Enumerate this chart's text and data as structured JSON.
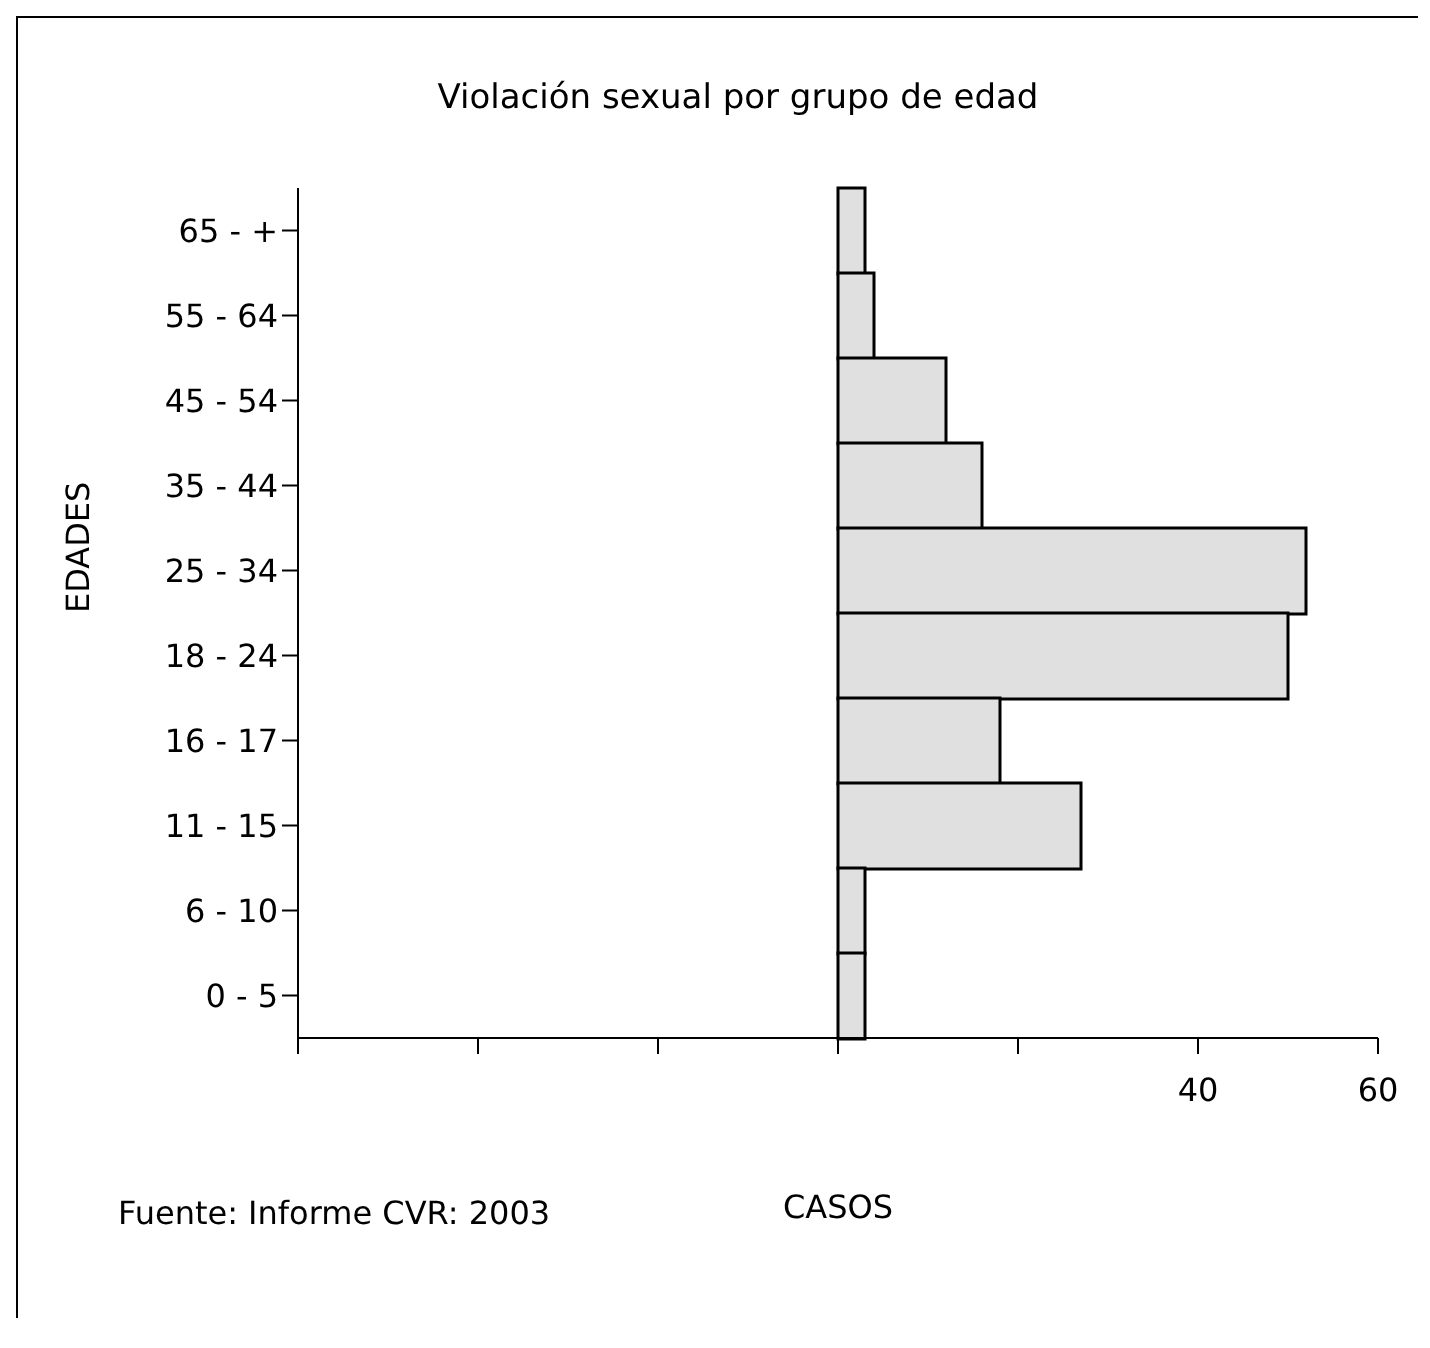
{
  "chart_data": {
    "type": "bar",
    "orientation": "horizontal",
    "title": "Violación sexual por grupo de edad",
    "xlabel": "CASOS",
    "ylabel": "EDADES",
    "categories": [
      "65 - +",
      "55 - 64",
      "45 - 54",
      "35 - 44",
      "25 - 34",
      "18 - 24",
      "16 - 17",
      "11 - 15",
      "6 - 10",
      "0 - 5"
    ],
    "values": [
      3,
      4,
      12,
      16,
      52,
      50,
      18,
      27,
      3,
      3
    ],
    "color": "#e0e0e0",
    "xlim": [
      -60,
      60
    ],
    "xticks": [
      {
        "value": -60,
        "label": null
      },
      {
        "value": -40,
        "label": null
      },
      {
        "value": -20,
        "label": null
      },
      {
        "value": 0,
        "label": null
      },
      {
        "value": 20,
        "label": null
      },
      40,
      60
    ],
    "annotations": [
      "Fuente: Informe CVR: 2003"
    ],
    "grid": false,
    "legend": false
  }
}
